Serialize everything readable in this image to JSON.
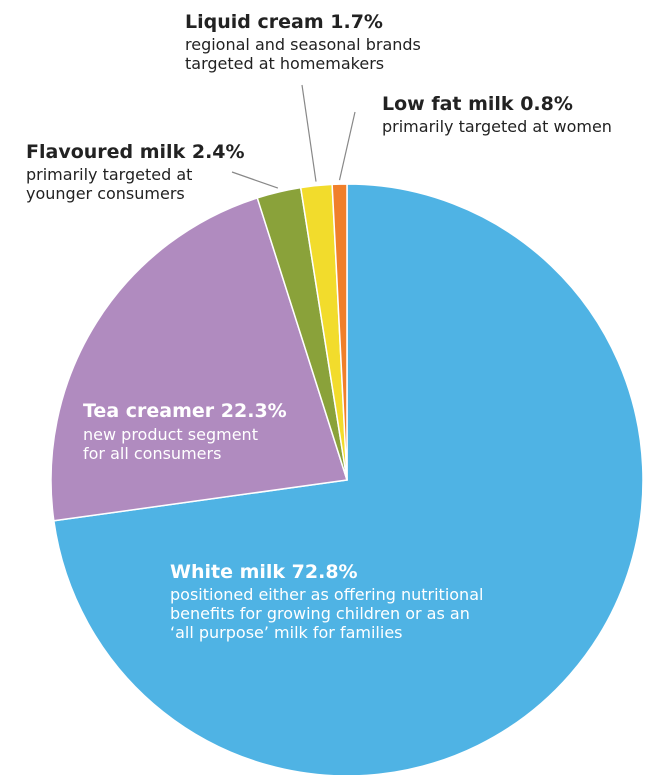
{
  "chart_data": {
    "type": "pie",
    "title": "",
    "slices": [
      {
        "label": "White milk",
        "value": 72.8,
        "value_label": "72.8%",
        "description": [
          "positioned either as offering nutritional",
          "benefits for growing children or as an",
          "‘all purpose’ milk for families"
        ],
        "color": "#4fb3e4"
      },
      {
        "label": "Tea creamer",
        "value": 22.3,
        "value_label": "22.3%",
        "description": [
          "new product segment",
          "for all consumers"
        ],
        "color": "#b08bbf"
      },
      {
        "label": "Flavoured milk",
        "value": 2.4,
        "value_label": "2.4%",
        "description": [
          "primarily targeted at",
          "younger consumers"
        ],
        "color": "#8aa23a"
      },
      {
        "label": "Liquid cream",
        "value": 1.7,
        "value_label": "1.7%",
        "description": [
          "regional and seasonal brands",
          "targeted at homemakers"
        ],
        "color": "#f2dc2c"
      },
      {
        "label": "Low fat milk",
        "value": 0.8,
        "value_label": "0.8%",
        "description": [
          "primarily targeted at women"
        ],
        "color": "#f07f2a"
      }
    ]
  }
}
